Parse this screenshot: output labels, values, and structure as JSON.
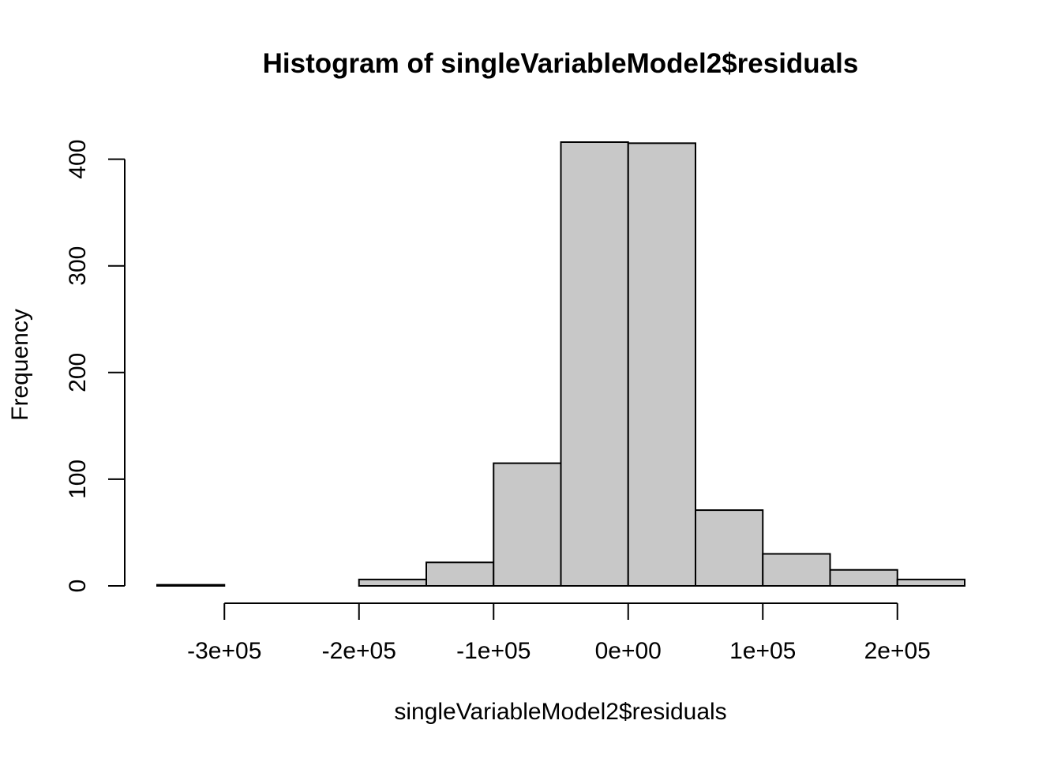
{
  "chart_data": {
    "type": "bar",
    "subtype": "histogram",
    "title": "Histogram of singleVariableModel2$residuals",
    "xlabel": "singleVariableModel2$residuals",
    "ylabel": "Frequency",
    "bin_edges": [
      -350000,
      -300000,
      -250000,
      -200000,
      -150000,
      -100000,
      -50000,
      0,
      50000,
      100000,
      150000,
      200000,
      250000
    ],
    "counts": [
      1,
      0,
      0,
      6,
      22,
      115,
      416,
      415,
      71,
      30,
      15,
      6
    ],
    "xlim": [
      -350000,
      250000
    ],
    "ylim": [
      0,
      416
    ],
    "x_ticks": [
      -300000,
      -200000,
      -100000,
      0,
      100000,
      200000
    ],
    "x_tick_labels": [
      "-3e+05",
      "-2e+05",
      "-1e+05",
      "0e+00",
      "1e+05",
      "2e+05"
    ],
    "y_ticks": [
      0,
      100,
      200,
      300,
      400
    ],
    "y_tick_labels": [
      "0",
      "100",
      "200",
      "300",
      "400"
    ],
    "bar_color": "#c8c8c8",
    "grid": false,
    "legend": "none"
  }
}
